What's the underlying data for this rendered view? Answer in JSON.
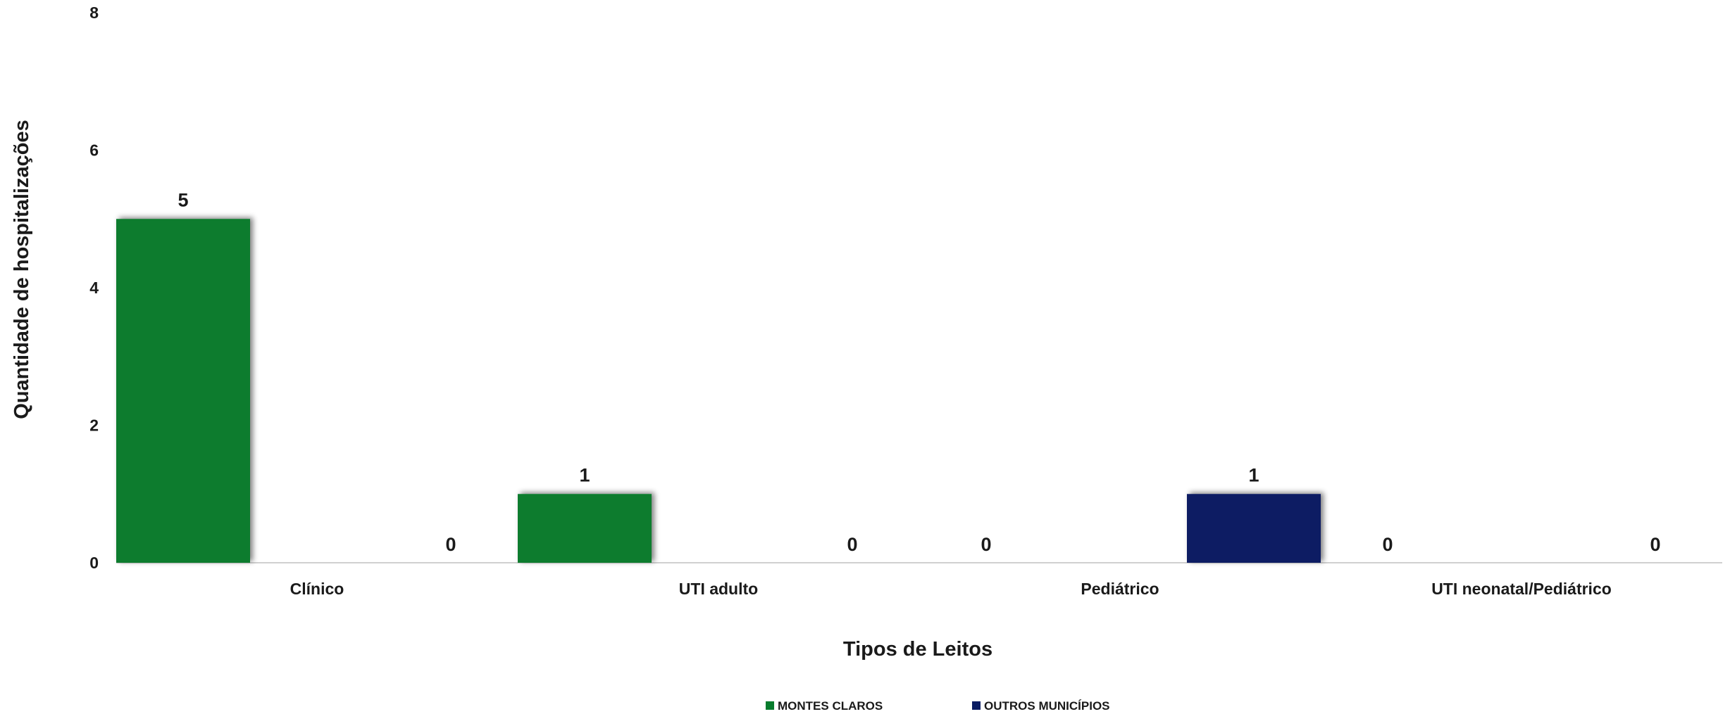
{
  "chart_data": {
    "type": "bar",
    "categories": [
      "Clínico",
      "UTI adulto",
      "Pediátrico",
      "UTI neonatal/Pediátrico"
    ],
    "series": [
      {
        "name": "MONTES CLAROS",
        "values": [
          5,
          1,
          0,
          0
        ],
        "color": "#077c2d"
      },
      {
        "name": "OUTROS MUNICÍPIOS",
        "values": [
          0,
          0,
          1,
          0
        ],
        "color": "#0a1d63"
      }
    ],
    "xlabel": "Tipos de Leitos",
    "ylabel": "Quantidade de hospitalizações",
    "ylim": [
      0,
      8
    ],
    "yticks": [
      0,
      2,
      4,
      6,
      8
    ],
    "grid": false,
    "legend": "bottom",
    "data_labels": true
  }
}
